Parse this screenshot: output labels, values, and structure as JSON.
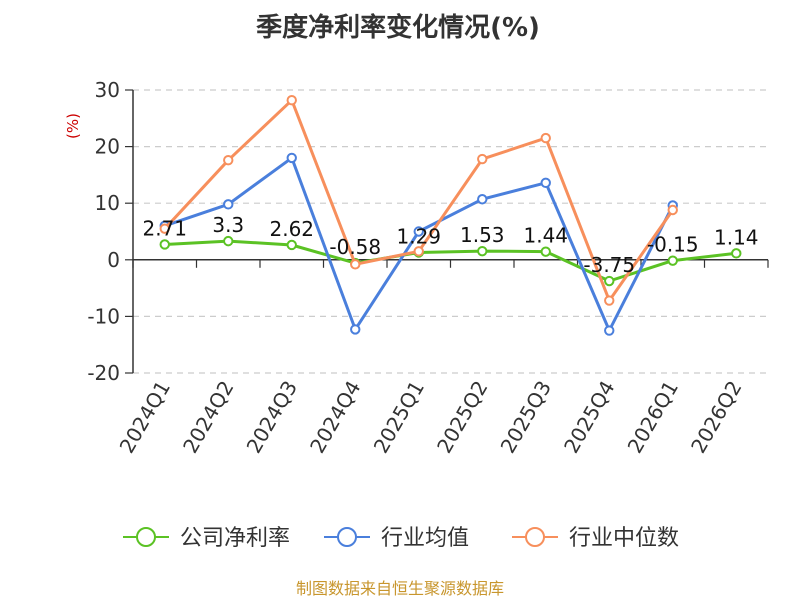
{
  "chart_data": {
    "type": "line",
    "title": "季度净利率变化情况(%)",
    "ylabel": "(%)",
    "ylim": [
      -20,
      30
    ],
    "yticks": [
      30,
      20,
      10,
      0,
      -10,
      -20
    ],
    "grid": true,
    "legend_position": "bottom",
    "categories": [
      "2024Q1",
      "2024Q2",
      "2024Q3",
      "2024Q4",
      "2025Q1",
      "2025Q2",
      "2025Q3",
      "2025Q4",
      "2026Q1",
      "2026Q2"
    ],
    "series": [
      {
        "name": "公司净利率",
        "color": "#5bc224",
        "values": [
          2.71,
          3.3,
          2.62,
          -0.58,
          1.29,
          1.53,
          1.44,
          -3.75,
          -0.15,
          1.14
        ],
        "labels": [
          "2.71",
          "3.3",
          "2.62",
          "-0.58",
          "1.29",
          "1.53",
          "1.44",
          "-3.75",
          "-0.15",
          "1.14"
        ]
      },
      {
        "name": "行业均值",
        "color": "#4a7fdc",
        "values": [
          6.0,
          9.8,
          18.0,
          -12.3,
          5.0,
          10.7,
          13.6,
          -12.5,
          9.6,
          null
        ]
      },
      {
        "name": "行业中位数",
        "color": "#f78f5c",
        "values": [
          5.5,
          17.6,
          28.2,
          -0.8,
          1.5,
          17.8,
          21.5,
          -7.2,
          8.8,
          null
        ]
      }
    ]
  },
  "source": "制图数据来自恒生聚源数据库",
  "colors": {
    "title": "#333333",
    "ylabel": "#cc0000",
    "source": "#c8962d",
    "grid": "#cccccc"
  }
}
